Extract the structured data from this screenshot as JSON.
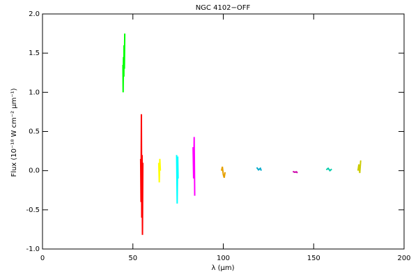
{
  "chart_data": {
    "type": "line",
    "title": "NGC 4102−OFF",
    "x_label": "λ (μm)",
    "y_label": "Flux (10⁻¹⁸ W cm⁻² μm⁻¹)",
    "xlim": [
      0,
      200
    ],
    "xticks": [
      0,
      50,
      100,
      150,
      200
    ],
    "ylim": [
      -1.0,
      2.0
    ],
    "yticks": [
      {
        "value": -1.0,
        "label": "-1.0"
      },
      {
        "value": -0.5,
        "label": "-0.5"
      },
      {
        "value": 0.0,
        "label": "0.0"
      },
      {
        "value": 0.5,
        "label": "0.5"
      },
      {
        "value": 1.0,
        "label": "1.0"
      },
      {
        "value": 1.5,
        "label": "1.5"
      },
      {
        "value": 2.0,
        "label": "2.0"
      }
    ],
    "series": [
      {
        "color": "#00ff00",
        "x": [
          44.5,
          44.6,
          44.8,
          45,
          45.1,
          45.3,
          45.5
        ],
        "values": [
          1.35,
          1.0,
          1.45,
          1.2,
          1.6,
          1.3,
          1.75
        ]
      },
      {
        "color": "#ff0000",
        "x": [
          54.3,
          54.5,
          54.7,
          54.9,
          55.1,
          55.3,
          55.5
        ],
        "values": [
          0.15,
          -0.4,
          0.72,
          -0.6,
          0.2,
          -0.82,
          0.1
        ]
      },
      {
        "color": "#ffff00",
        "x": [
          64.3,
          64.6,
          64.9,
          65.2
        ],
        "values": [
          0.1,
          -0.15,
          0.15,
          0.0
        ]
      },
      {
        "color": "#00ffff",
        "x": [
          74.2,
          74.5,
          74.8,
          75.0
        ],
        "values": [
          0.2,
          -0.42,
          0.18,
          -0.1
        ]
      },
      {
        "color": "#ff00ff",
        "x": [
          83.3,
          83.6,
          83.9,
          84.2
        ],
        "values": [
          0.3,
          -0.1,
          0.43,
          -0.32
        ]
      },
      {
        "color": "#e6a000",
        "x": [
          99,
          99.5,
          100,
          100.5,
          101
        ],
        "values": [
          0.0,
          0.05,
          -0.05,
          -0.09,
          -0.02
        ]
      },
      {
        "color": "#00aacc",
        "x": [
          118.5,
          119.5,
          120.5,
          121
        ],
        "values": [
          0.04,
          0.01,
          0.03,
          0.0
        ]
      },
      {
        "color": "#cc00aa",
        "x": [
          138.5,
          139.5,
          140.5,
          141
        ],
        "values": [
          -0.01,
          -0.02,
          -0.015,
          -0.03
        ]
      },
      {
        "color": "#00ccaa",
        "x": [
          157,
          158,
          159,
          160
        ],
        "values": [
          0.01,
          0.03,
          0.0,
          0.02
        ]
      },
      {
        "color": "#cccc00",
        "x": [
          174.5,
          175,
          175.5,
          176
        ],
        "values": [
          0.0,
          0.08,
          -0.03,
          0.13
        ]
      }
    ]
  }
}
